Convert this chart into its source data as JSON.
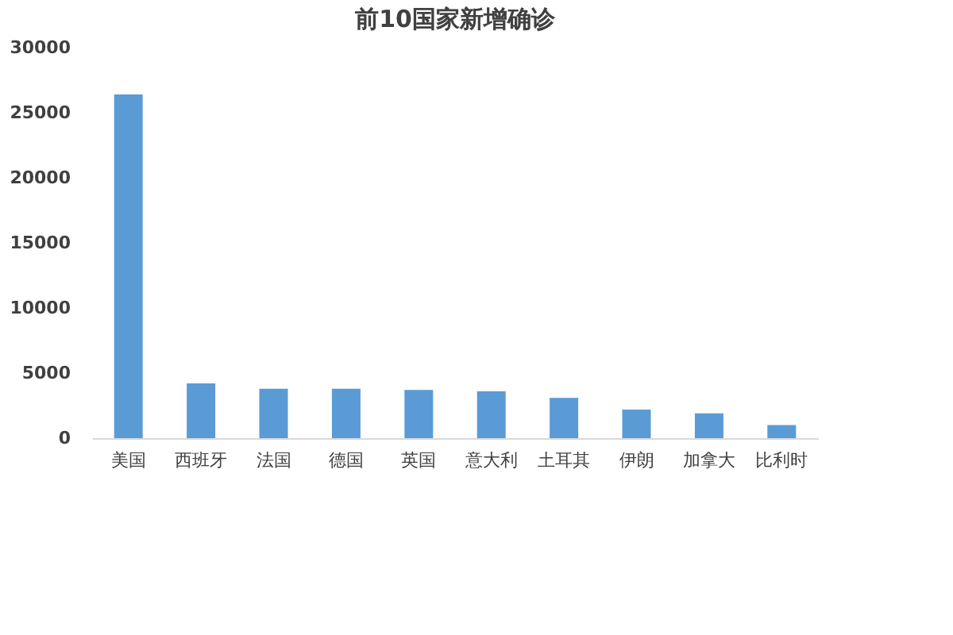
{
  "chart_data": {
    "type": "bar",
    "title": "前10国家新增确诊",
    "categories": [
      "美国",
      "西班牙",
      "法国",
      "德国",
      "英国",
      "意大利",
      "土耳其",
      "伊朗",
      "加拿大",
      "比利时"
    ],
    "values": [
      26400,
      4200,
      3800,
      3800,
      3700,
      3600,
      3100,
      2200,
      1900,
      1000
    ],
    "color": "#5b9bd5",
    "ylim": [
      0,
      30000
    ],
    "yticks": [
      0,
      5000,
      10000,
      15000,
      20000,
      25000,
      30000
    ],
    "grid": false
  }
}
